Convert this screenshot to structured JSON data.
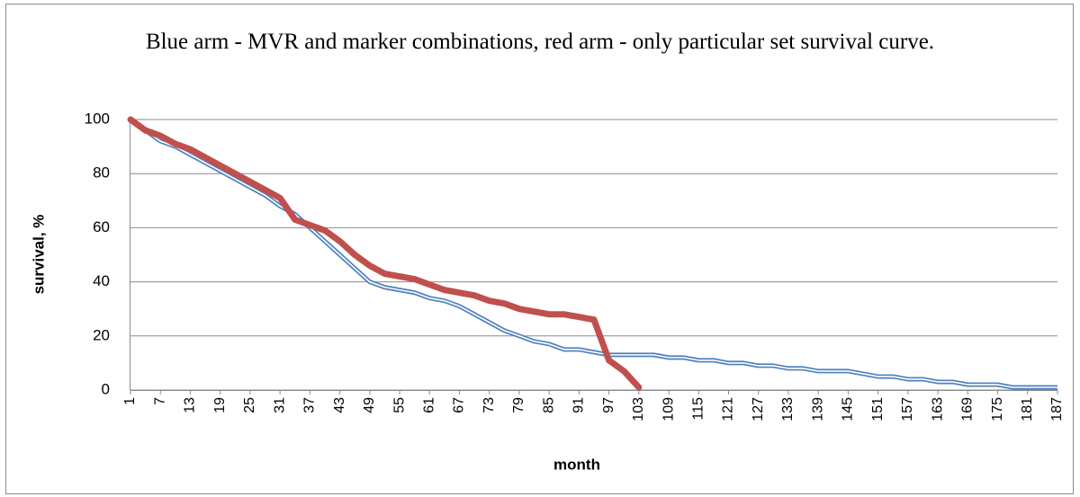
{
  "chart_data": {
    "type": "line",
    "title": "Blue arm - MVR and marker combinations, red arm - only particular set survival curve.",
    "x_label": "month",
    "y_label": "survival, %",
    "x": [
      1,
      4,
      7,
      10,
      13,
      16,
      19,
      22,
      25,
      28,
      31,
      34,
      37,
      40,
      43,
      46,
      49,
      52,
      55,
      58,
      61,
      64,
      67,
      70,
      73,
      76,
      79,
      82,
      85,
      88,
      91,
      94,
      97,
      100,
      103,
      106,
      109,
      112,
      115,
      118,
      121,
      124,
      127,
      130,
      133,
      136,
      139,
      142,
      145,
      148,
      151,
      154,
      157,
      160,
      163,
      166,
      169,
      172,
      175,
      178,
      181,
      184,
      187
    ],
    "series": [
      {
        "color": "#4f81bd",
        "style": "double",
        "values": [
          100,
          96,
          92,
          90,
          87,
          84,
          81,
          78,
          75,
          72,
          68,
          65,
          60,
          55,
          50,
          45,
          40,
          38,
          37,
          36,
          34,
          33,
          31,
          28,
          25,
          22,
          20,
          18,
          17,
          15,
          15,
          14,
          13,
          13,
          13,
          13,
          12,
          12,
          11,
          11,
          10,
          10,
          9,
          9,
          8,
          8,
          7,
          7,
          7,
          6,
          5,
          5,
          4,
          4,
          3,
          3,
          2,
          2,
          2,
          1,
          1,
          1,
          1
        ]
      },
      {
        "color": "#c0504d",
        "style": "thick",
        "values": [
          100,
          96,
          94,
          91,
          89,
          86,
          83,
          80,
          77,
          74,
          71,
          63,
          61,
          59,
          55,
          50,
          46,
          43,
          42,
          41,
          39,
          37,
          36,
          35,
          33,
          32,
          30,
          29,
          28,
          28,
          27,
          26,
          11,
          7,
          1,
          null,
          null,
          null,
          null,
          null,
          null,
          null,
          null,
          null,
          null,
          null,
          null,
          null,
          null,
          null,
          null,
          null,
          null,
          null,
          null,
          null,
          null,
          null,
          null,
          null,
          null,
          null,
          null
        ]
      }
    ],
    "xlim": [
      1,
      187
    ],
    "xticks": [
      1,
      7,
      13,
      19,
      25,
      31,
      37,
      43,
      49,
      55,
      61,
      67,
      73,
      79,
      85,
      91,
      97,
      103,
      109,
      115,
      121,
      127,
      133,
      139,
      145,
      151,
      157,
      163,
      169,
      175,
      181,
      187
    ],
    "ylim": [
      0,
      100
    ],
    "yticks": [
      0,
      20,
      40,
      60,
      80,
      100
    ],
    "grid": true
  }
}
